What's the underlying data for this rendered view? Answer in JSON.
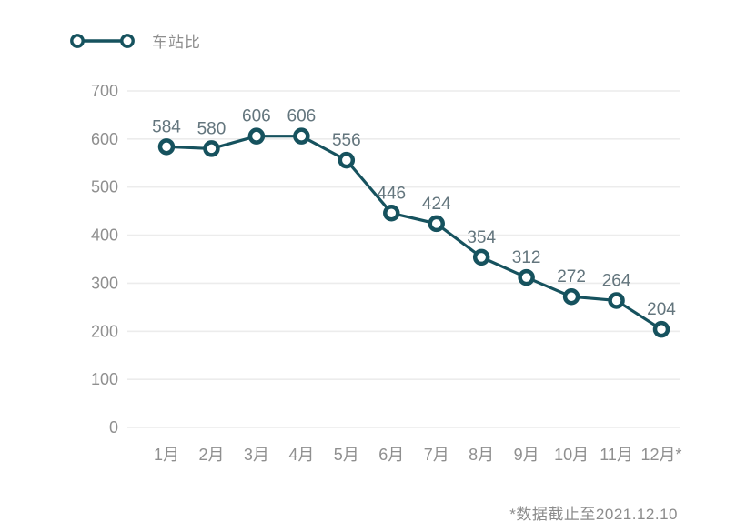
{
  "legend": {
    "label": "车站比"
  },
  "footnote": "*数据截止至2021.12.10",
  "colors": {
    "line": "#16525e",
    "marker_fill": "#ffffff",
    "data_label": "#63757d",
    "axis_label": "#8f8f8f",
    "gridline": "#ececec",
    "legend_label": "#8e8e8e",
    "footnote": "#8c8c8c",
    "background": "#ffffff"
  },
  "chart_data": {
    "type": "line",
    "title": "",
    "xlabel": "",
    "ylabel": "",
    "categories": [
      "1月",
      "2月",
      "3月",
      "4月",
      "5月",
      "6月",
      "7月",
      "8月",
      "9月",
      "10月",
      "11月",
      "12月*"
    ],
    "series": [
      {
        "name": "车站比",
        "values": [
          584,
          580,
          606,
          606,
          556,
          446,
          424,
          354,
          312,
          272,
          264,
          204
        ]
      }
    ],
    "ylim": [
      0,
      700
    ],
    "yticks": [
      0,
      100,
      200,
      300,
      400,
      500,
      600,
      700
    ],
    "grid": "horizontal",
    "legend_position": "top-left",
    "data_labels": true
  }
}
